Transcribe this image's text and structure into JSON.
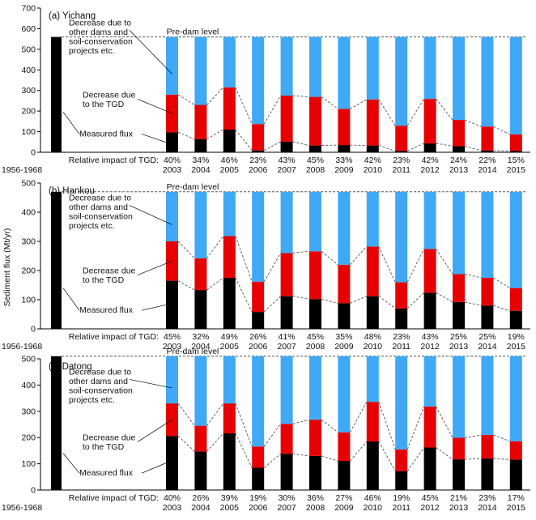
{
  "figure": {
    "ylabel": "Sediment flux (Mt/yr)",
    "colors": {
      "measured": "#000000",
      "tgd": "#e60000",
      "other": "#3fa9f5",
      "axis": "#000000",
      "dashed": "#555555"
    }
  },
  "chart_data": [
    {
      "type": "bar",
      "title": "(a) Yichang",
      "ylim": [
        0,
        700
      ],
      "yticks": [
        0,
        100,
        200,
        300,
        400,
        500,
        600,
        700
      ],
      "pre_dam_label": "Pre-dam level",
      "pre_dam_value": 560,
      "baseline": {
        "category": "1956-1968",
        "value": 560
      },
      "annotation_other": [
        "Decrease due to",
        "other dams and",
        "soil-conservation",
        "projects etc."
      ],
      "annotation_tgd": [
        "Decrease due",
        "to the TGD"
      ],
      "annotation_measured": "Measured flux",
      "impact_label": "Relative impact of TGD:",
      "categories": [
        "2003",
        "2004",
        "2005",
        "2006",
        "2007",
        "2008",
        "2009",
        "2010",
        "2011",
        "2012",
        "2013",
        "2014",
        "2015"
      ],
      "impact": [
        "40%",
        "34%",
        "46%",
        "23%",
        "43%",
        "45%",
        "33%",
        "42%",
        "23%",
        "42%",
        "24%",
        "22%",
        "15%"
      ],
      "series": [
        {
          "name": "Measured flux",
          "values": [
            97,
            64,
            110,
            9,
            51,
            33,
            35,
            33,
            6,
            43,
            30,
            8,
            6
          ]
        },
        {
          "name": "Decrease due to the TGD",
          "values": [
            183,
            166,
            205,
            128,
            224,
            236,
            176,
            223,
            123,
            216,
            127,
            117,
            81
          ]
        },
        {
          "name": "Decrease due to other dams and soil-conservation projects etc.",
          "values": [
            280,
            330,
            245,
            423,
            285,
            291,
            349,
            304,
            431,
            301,
            403,
            435,
            473
          ]
        }
      ]
    },
    {
      "type": "bar",
      "title": "(b) Hankou",
      "ylim": [
        0,
        500
      ],
      "yticks": [
        0,
        100,
        200,
        300,
        400,
        500
      ],
      "pre_dam_label": "Pre-dam level",
      "pre_dam_value": 470,
      "baseline": {
        "category": "1956-1968",
        "value": 470
      },
      "annotation_other": [
        "Decrease due to",
        "other dams and",
        "soil-conservation",
        "projects etc."
      ],
      "annotation_tgd": [
        "Decrease due",
        "to the TGD"
      ],
      "annotation_measured": "Measured flux",
      "impact_label": "Relative impact of TGD:",
      "categories": [
        "2003",
        "2004",
        "2005",
        "2006",
        "2007",
        "2008",
        "2009",
        "2010",
        "2011",
        "2012",
        "2013",
        "2014",
        "2015"
      ],
      "impact": [
        "45%",
        "32%",
        "49%",
        "26%",
        "41%",
        "45%",
        "35%",
        "48%",
        "23%",
        "43%",
        "25%",
        "25%",
        "19%"
      ],
      "series": [
        {
          "name": "Measured flux",
          "values": [
            165,
            133,
            175,
            58,
            112,
            102,
            88,
            112,
            70,
            124,
            92,
            80,
            62
          ]
        },
        {
          "name": "Decrease due to the TGD",
          "values": [
            135,
            109,
            143,
            104,
            148,
            164,
            132,
            170,
            90,
            150,
            96,
            95,
            78
          ]
        },
        {
          "name": "Decrease due to other dams and soil-conservation projects etc.",
          "values": [
            170,
            228,
            152,
            308,
            210,
            204,
            250,
            188,
            310,
            196,
            282,
            295,
            330
          ]
        }
      ]
    },
    {
      "type": "bar",
      "title": "(c) Datong",
      "ylim": [
        0,
        500
      ],
      "yticks": [
        0,
        100,
        200,
        300,
        400,
        500
      ],
      "pre_dam_label": "Pre-dam level",
      "pre_dam_value": 510,
      "baseline": {
        "category": "1956-1968",
        "value": 510
      },
      "annotation_other": [
        "Decrease due to",
        "other dams and",
        "soil-conservation",
        "projects etc."
      ],
      "annotation_tgd": [
        "Decrease due",
        "to the TGD"
      ],
      "annotation_measured": "Measured flux",
      "impact_label": "Relative impact of TGD:",
      "categories": [
        "2003",
        "2004",
        "2005",
        "2006",
        "2007",
        "2008",
        "2009",
        "2010",
        "2011",
        "2012",
        "2013",
        "2014",
        "2015"
      ],
      "impact": [
        "40%",
        "26%",
        "39%",
        "19%",
        "30%",
        "36%",
        "27%",
        "46%",
        "19%",
        "45%",
        "21%",
        "23%",
        "17%"
      ],
      "series": [
        {
          "name": "Measured flux",
          "values": [
            206,
            147,
            216,
            85,
            138,
            130,
            111,
            185,
            72,
            162,
            117,
            120,
            116
          ]
        },
        {
          "name": "Decrease due to the TGD",
          "values": [
            124,
            98,
            114,
            81,
            114,
            138,
            109,
            151,
            83,
            156,
            82,
            90,
            70
          ]
        },
        {
          "name": "Decrease due to other dams and soil-conservation projects etc.",
          "values": [
            180,
            265,
            180,
            344,
            258,
            242,
            290,
            174,
            355,
            192,
            311,
            300,
            324
          ]
        }
      ]
    }
  ]
}
